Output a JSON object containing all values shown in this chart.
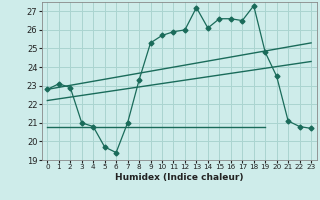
{
  "xlabel": "Humidex (Indice chaleur)",
  "ylabel": "",
  "bg_color": "#ceecea",
  "grid_color": "#aad4d0",
  "line_color": "#1a6b5a",
  "xlim": [
    -0.5,
    23.5
  ],
  "ylim": [
    19,
    27.5
  ],
  "yticks": [
    19,
    20,
    21,
    22,
    23,
    24,
    25,
    26,
    27
  ],
  "xticks": [
    0,
    1,
    2,
    3,
    4,
    5,
    6,
    7,
    8,
    9,
    10,
    11,
    12,
    13,
    14,
    15,
    16,
    17,
    18,
    19,
    20,
    21,
    22,
    23
  ],
  "line1_x": [
    0,
    1,
    2,
    3,
    4,
    5,
    6,
    7,
    8,
    9,
    10,
    11,
    12,
    13,
    14,
    15,
    16,
    17,
    18,
    19,
    20,
    21,
    22,
    23
  ],
  "line1_y": [
    22.8,
    23.1,
    22.9,
    21.0,
    20.8,
    19.7,
    19.4,
    21.0,
    23.3,
    25.3,
    25.7,
    25.9,
    26.0,
    27.2,
    26.1,
    26.6,
    26.6,
    26.5,
    27.3,
    24.8,
    23.5,
    21.1,
    20.8,
    20.7
  ],
  "line2_x": [
    0,
    23
  ],
  "line2_y": [
    22.8,
    25.3
  ],
  "line3_x": [
    0,
    23
  ],
  "line3_y": [
    22.2,
    24.3
  ],
  "line4_x": [
    0,
    19
  ],
  "line4_y": [
    20.8,
    20.8
  ],
  "marker": "D",
  "markersize": 2.5
}
